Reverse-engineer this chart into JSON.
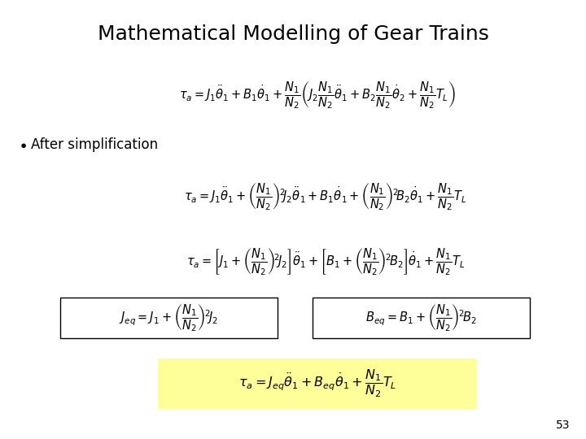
{
  "title": "Mathematical Modelling of Gear Trains",
  "title_fontsize": 18,
  "background_color": "#ffffff",
  "page_number": "53",
  "bullet_text": "After simplification",
  "eq1": "$\\tau_a = J_1\\ddot{\\theta}_1 + B_1\\dot{\\theta}_1 + \\dfrac{N_1}{N_2}\\left(J_2\\dfrac{N_1}{N_2}\\ddot{\\theta}_1 + B_2\\dfrac{N_1}{N_2}\\dot{\\theta}_2 + \\dfrac{N_1}{N_2}T_L\\right)$",
  "eq2": "$\\tau_a = J_1\\ddot{\\theta}_1 + \\left(\\dfrac{N_1}{N_2}\\right)^{\\!2}\\!J_2\\ddot{\\theta}_1 + B_1\\dot{\\theta}_1 + \\left(\\dfrac{N_1}{N_2}\\right)^{\\!2}\\!B_2\\dot{\\theta}_1 + \\dfrac{N_1}{N_2}T_L$",
  "eq3": "$\\tau_a = \\left[J_1 + \\left(\\dfrac{N_1}{N_2}\\right)^{\\!2}\\!J_2\\right]\\ddot{\\theta}_1 + \\left[B_1 + \\left(\\dfrac{N_1}{N_2}\\right)^{\\!2}\\!B_2\\right]\\dot{\\theta}_1 + \\dfrac{N_1}{N_2}T_L$",
  "eq4a": "$J_{eq} = J_1 + \\left(\\dfrac{N_1}{N_2}\\right)^{\\!2}\\!J_2$",
  "eq4b": "$B_{eq} = B_1 + \\left(\\dfrac{N_1}{N_2}\\right)^{\\!2}\\!B_2$",
  "eq5": "$\\tau_a = J_{eq}\\ddot{\\theta}_1 + B_{eq}\\dot{\\theta}_1 + \\dfrac{N_1}{N_2}T_L$",
  "highlight_color": "#ffff99",
  "eq_fontsize": 10.5,
  "bullet_fontsize": 12
}
